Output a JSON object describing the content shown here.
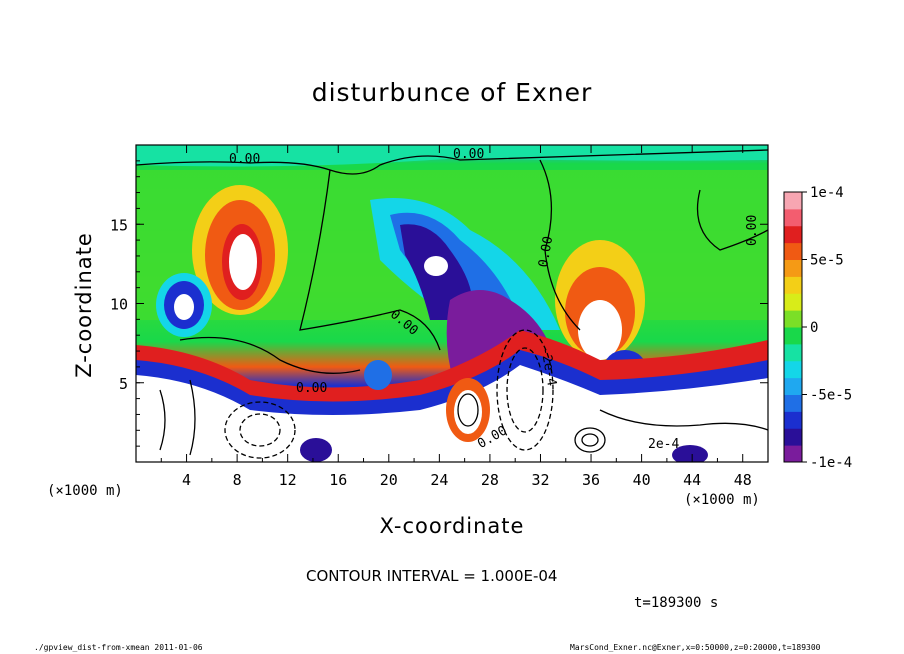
{
  "chart_data": {
    "type": "heatmap",
    "title": "disturbunce of Exner",
    "xlabel": "X-coordinate",
    "ylabel": "Z-coordinate",
    "x_unit_label": "(×1000 m)",
    "x_ticks": [
      4,
      8,
      12,
      16,
      20,
      24,
      28,
      32,
      36,
      40,
      44,
      48
    ],
    "y_ticks": [
      5,
      10,
      15
    ],
    "xlim": [
      0,
      50
    ],
    "ylim": [
      0,
      20
    ],
    "colorbar": {
      "range": [
        -0.0001,
        0.0001
      ],
      "tick_labels": [
        "1e-4",
        "5e-5",
        "0",
        "-5e-5",
        "-1e-4"
      ],
      "tick_values": [
        0.0001,
        5e-05,
        0,
        -5e-05,
        -0.0001
      ],
      "colors": [
        "#7a1c9c",
        "#2a0f98",
        "#1b2fcf",
        "#1f6fe6",
        "#1fa8f0",
        "#14d6e8",
        "#16e2a3",
        "#19d84a",
        "#7bdf27",
        "#d8ec19",
        "#f3cf17",
        "#f59a15",
        "#f05a13",
        "#e01f1f",
        "#f35d6f",
        "#f7a6b2"
      ]
    },
    "contour_labels": [
      "0.00",
      "0.00",
      "0.00",
      "0.00",
      "0.00",
      "0.00",
      "-2e-4",
      "2e-4",
      "0.00"
    ],
    "contour_interval": "CONTOUR INTERVAL = 1.000E-04"
  },
  "annotations": {
    "x_unit_left": "(×1000 m)",
    "x_unit_right": "(×1000 m)",
    "time": "t=189300 s",
    "footer_left": "./gpview_dist-from-xmean  2011-01-06",
    "footer_right": "MarsCond_Exner.nc@Exner,x=0:50000,z=0:20000,t=189300"
  }
}
